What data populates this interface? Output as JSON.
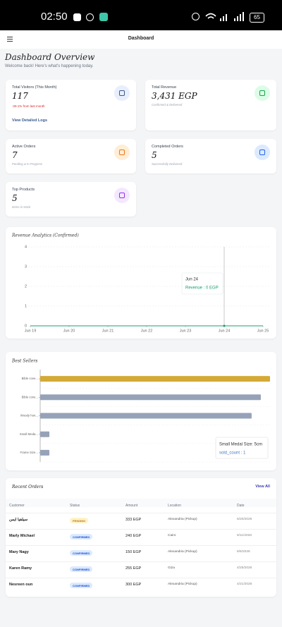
{
  "status_bar": {
    "time": "02:50",
    "battery": "65"
  },
  "header": {
    "title": "Dashboard"
  },
  "overview": {
    "title": "Dashboard Overview",
    "subtitle": "Welcome back! Here's what's happening today."
  },
  "cards": [
    {
      "title": "Total Visitors (This Month)",
      "value": "117",
      "trend": "-29.1% from last month",
      "link": "View Detailed Logs",
      "icon_color": "#3b5b8c",
      "icon_bg": "#e8eefb"
    },
    {
      "title": "Total Revenue",
      "value": "3,431 EGP",
      "note": "Confirmed & Delivered",
      "icon_color": "#16a34a",
      "icon_bg": "#dcfce7"
    },
    {
      "title": "Active Orders",
      "value": "7",
      "note": "Pending & In Progress",
      "icon_color": "#ea7a1a",
      "icon_bg": "#ffedd5"
    },
    {
      "title": "Completed Orders",
      "value": "5",
      "note": "Successfully Delivered",
      "icon_color": "#2563eb",
      "icon_bg": "#dbeafe"
    },
    {
      "title": "Top Products",
      "value": "5",
      "note": "Items in stock",
      "icon_color": "#9333ea",
      "icon_bg": "#f3e8ff"
    }
  ],
  "chart_data": [
    {
      "type": "line",
      "title": "Revenue Analytics (Confirmed)",
      "categories": [
        "Jun 19",
        "Jun 20",
        "Jun 21",
        "Jun 22",
        "Jun 23",
        "Jun 24",
        "Jun 25"
      ],
      "series": [
        {
          "name": "Revenue",
          "color": "#1aa06d",
          "values": [
            0,
            0,
            0,
            0,
            0,
            0,
            0
          ]
        }
      ],
      "ylim": [
        0,
        4
      ],
      "yticks": [
        0,
        1,
        2,
        3,
        4
      ],
      "grid": true,
      "tooltip": {
        "title": "Jun 24",
        "label": "Revenue : 0 EGP",
        "index": 5
      }
    },
    {
      "type": "barh",
      "title": "Best Sellers",
      "categories": [
        "Bible cove...",
        "Bible cove...",
        "Woody hon...",
        "Small Meda...",
        "Frame Size..."
      ],
      "values": [
        25,
        24,
        23,
        1,
        1
      ],
      "colors": [
        "#d4a935",
        "#96a2b8",
        "#96a2b8",
        "#96a2b8",
        "#96a2b8"
      ],
      "xlim": [
        0,
        25
      ],
      "grid": true,
      "tooltip": {
        "title": "Small Medal Size: 5cm",
        "label": "sold_count : 1",
        "index": 3
      }
    }
  ],
  "orders": {
    "title": "Recent Orders",
    "link": "View All",
    "columns": [
      "Customer",
      "Status",
      "Amount",
      "Location",
      "Date"
    ],
    "rows": [
      {
        "customer": "سيلفيا ايمن",
        "status": "PENDING",
        "status_color": "#b7791f",
        "status_bg": "#fef3c7",
        "amount": "333 EGP",
        "location": "Alexandria (Pickup)",
        "date": "6/20/2026"
      },
      {
        "customer": "Marly Michael",
        "status": "CONFIRMED",
        "status_color": "#1d4ed8",
        "status_bg": "#dbeafe",
        "amount": "240 EGP",
        "location": "Cairo",
        "date": "6/11/2026"
      },
      {
        "customer": "Mary Nagy",
        "status": "CONFIRMED",
        "status_color": "#1d4ed8",
        "status_bg": "#dbeafe",
        "amount": "150 EGP",
        "location": "Alexandria (Pickup)",
        "date": "6/6/2026"
      },
      {
        "customer": "Karen Ramy",
        "status": "CONFIRMED",
        "status_color": "#1d4ed8",
        "status_bg": "#dbeafe",
        "amount": "255 EGP",
        "location": "Giza",
        "date": "4/25/2026"
      },
      {
        "customer": "Nesreen oun",
        "status": "CONFIRMED",
        "status_color": "#1d4ed8",
        "status_bg": "#dbeafe",
        "amount": "300 EGP",
        "location": "Alexandria (Pickup)",
        "date": "4/21/2026"
      }
    ]
  }
}
